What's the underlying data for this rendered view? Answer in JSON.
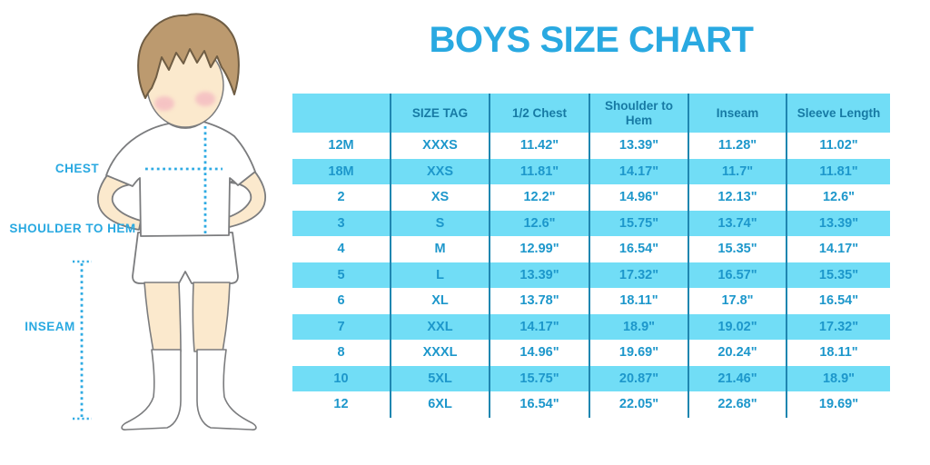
{
  "title": "BOYS SIZE CHART",
  "figure": {
    "labels": {
      "chest": "CHEST",
      "shoulder_to_hem": "SHOULDER TO HEM",
      "inseam": "INSEAM"
    }
  },
  "colors": {
    "accent_blue": "#29A9E1",
    "row_fill": "#71DDF6",
    "header_text": "#177AA4",
    "cell_text": "#1D97CB",
    "grid_line": "#1F86B0",
    "hair": "#BC9A6F",
    "skin": "#FBE9CD",
    "cheek": "#F2ABBE"
  },
  "chart_data": {
    "type": "table",
    "title": "BOYS SIZE CHART",
    "columns": [
      "",
      "SIZE TAG",
      "1/2 Chest",
      "Shoulder to Hem",
      "Inseam",
      "Sleeve Length"
    ],
    "rows": [
      [
        "12M",
        "XXXS",
        "11.42\"",
        "13.39\"",
        "11.28\"",
        "11.02\""
      ],
      [
        "18M",
        "XXS",
        "11.81\"",
        "14.17\"",
        "11.7\"",
        "11.81\""
      ],
      [
        "2",
        "XS",
        "12.2\"",
        "14.96\"",
        "12.13\"",
        "12.6\""
      ],
      [
        "3",
        "S",
        "12.6\"",
        "15.75\"",
        "13.74\"",
        "13.39\""
      ],
      [
        "4",
        "M",
        "12.99\"",
        "16.54\"",
        "15.35\"",
        "14.17\""
      ],
      [
        "5",
        "L",
        "13.39\"",
        "17.32\"",
        "16.57\"",
        "15.35\""
      ],
      [
        "6",
        "XL",
        "13.78\"",
        "18.11\"",
        "17.8\"",
        "16.54\""
      ],
      [
        "7",
        "XXL",
        "14.17\"",
        "18.9\"",
        "19.02\"",
        "17.32\""
      ],
      [
        "8",
        "XXXL",
        "14.96\"",
        "19.69\"",
        "20.24\"",
        "18.11\""
      ],
      [
        "10",
        "5XL",
        "15.75\"",
        "20.87\"",
        "21.46\"",
        "18.9\""
      ],
      [
        "12",
        "6XL",
        "16.54\"",
        "22.05\"",
        "22.68\"",
        "19.69\""
      ]
    ],
    "row_striping": [
      "#FFFFFF",
      "#71DDF6"
    ],
    "grid": "vertical-only",
    "legend_position": "none"
  }
}
